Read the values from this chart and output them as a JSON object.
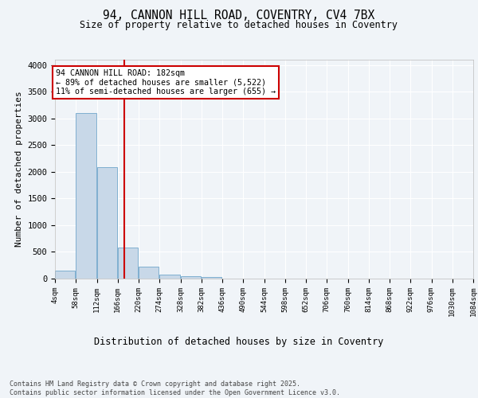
{
  "title": "94, CANNON HILL ROAD, COVENTRY, CV4 7BX",
  "subtitle": "Size of property relative to detached houses in Coventry",
  "xlabel": "Distribution of detached houses by size in Coventry",
  "ylabel": "Number of detached properties",
  "bar_color": "#c8d8e8",
  "bar_edge_color": "#7fafd0",
  "bg_color": "#f0f4f8",
  "grid_color": "#ffffff",
  "annotation_line_color": "#cc0000",
  "annotation_box_color": "#cc0000",
  "annotation_text": "94 CANNON HILL ROAD: 182sqm\n← 89% of detached houses are smaller (5,522)\n11% of semi-detached houses are larger (655) →",
  "property_sqm": 182,
  "tick_labels": [
    "4sqm",
    "58sqm",
    "112sqm",
    "166sqm",
    "220sqm",
    "274sqm",
    "328sqm",
    "382sqm",
    "436sqm",
    "490sqm",
    "544sqm",
    "598sqm",
    "652sqm",
    "706sqm",
    "760sqm",
    "814sqm",
    "868sqm",
    "922sqm",
    "976sqm",
    "1030sqm",
    "1084sqm"
  ],
  "bin_edges": [
    4,
    58,
    112,
    166,
    220,
    274,
    328,
    382,
    436,
    490,
    544,
    598,
    652,
    706,
    760,
    814,
    868,
    922,
    976,
    1030,
    1084
  ],
  "bar_heights": [
    150,
    3100,
    2080,
    580,
    230,
    70,
    45,
    30,
    0,
    0,
    0,
    0,
    0,
    0,
    0,
    0,
    0,
    0,
    0,
    0
  ],
  "ylim": [
    0,
    4100
  ],
  "yticks": [
    0,
    500,
    1000,
    1500,
    2000,
    2500,
    3000,
    3500,
    4000
  ],
  "footer": "Contains HM Land Registry data © Crown copyright and database right 2025.\nContains public sector information licensed under the Open Government Licence v3.0.",
  "font_family": "monospace"
}
